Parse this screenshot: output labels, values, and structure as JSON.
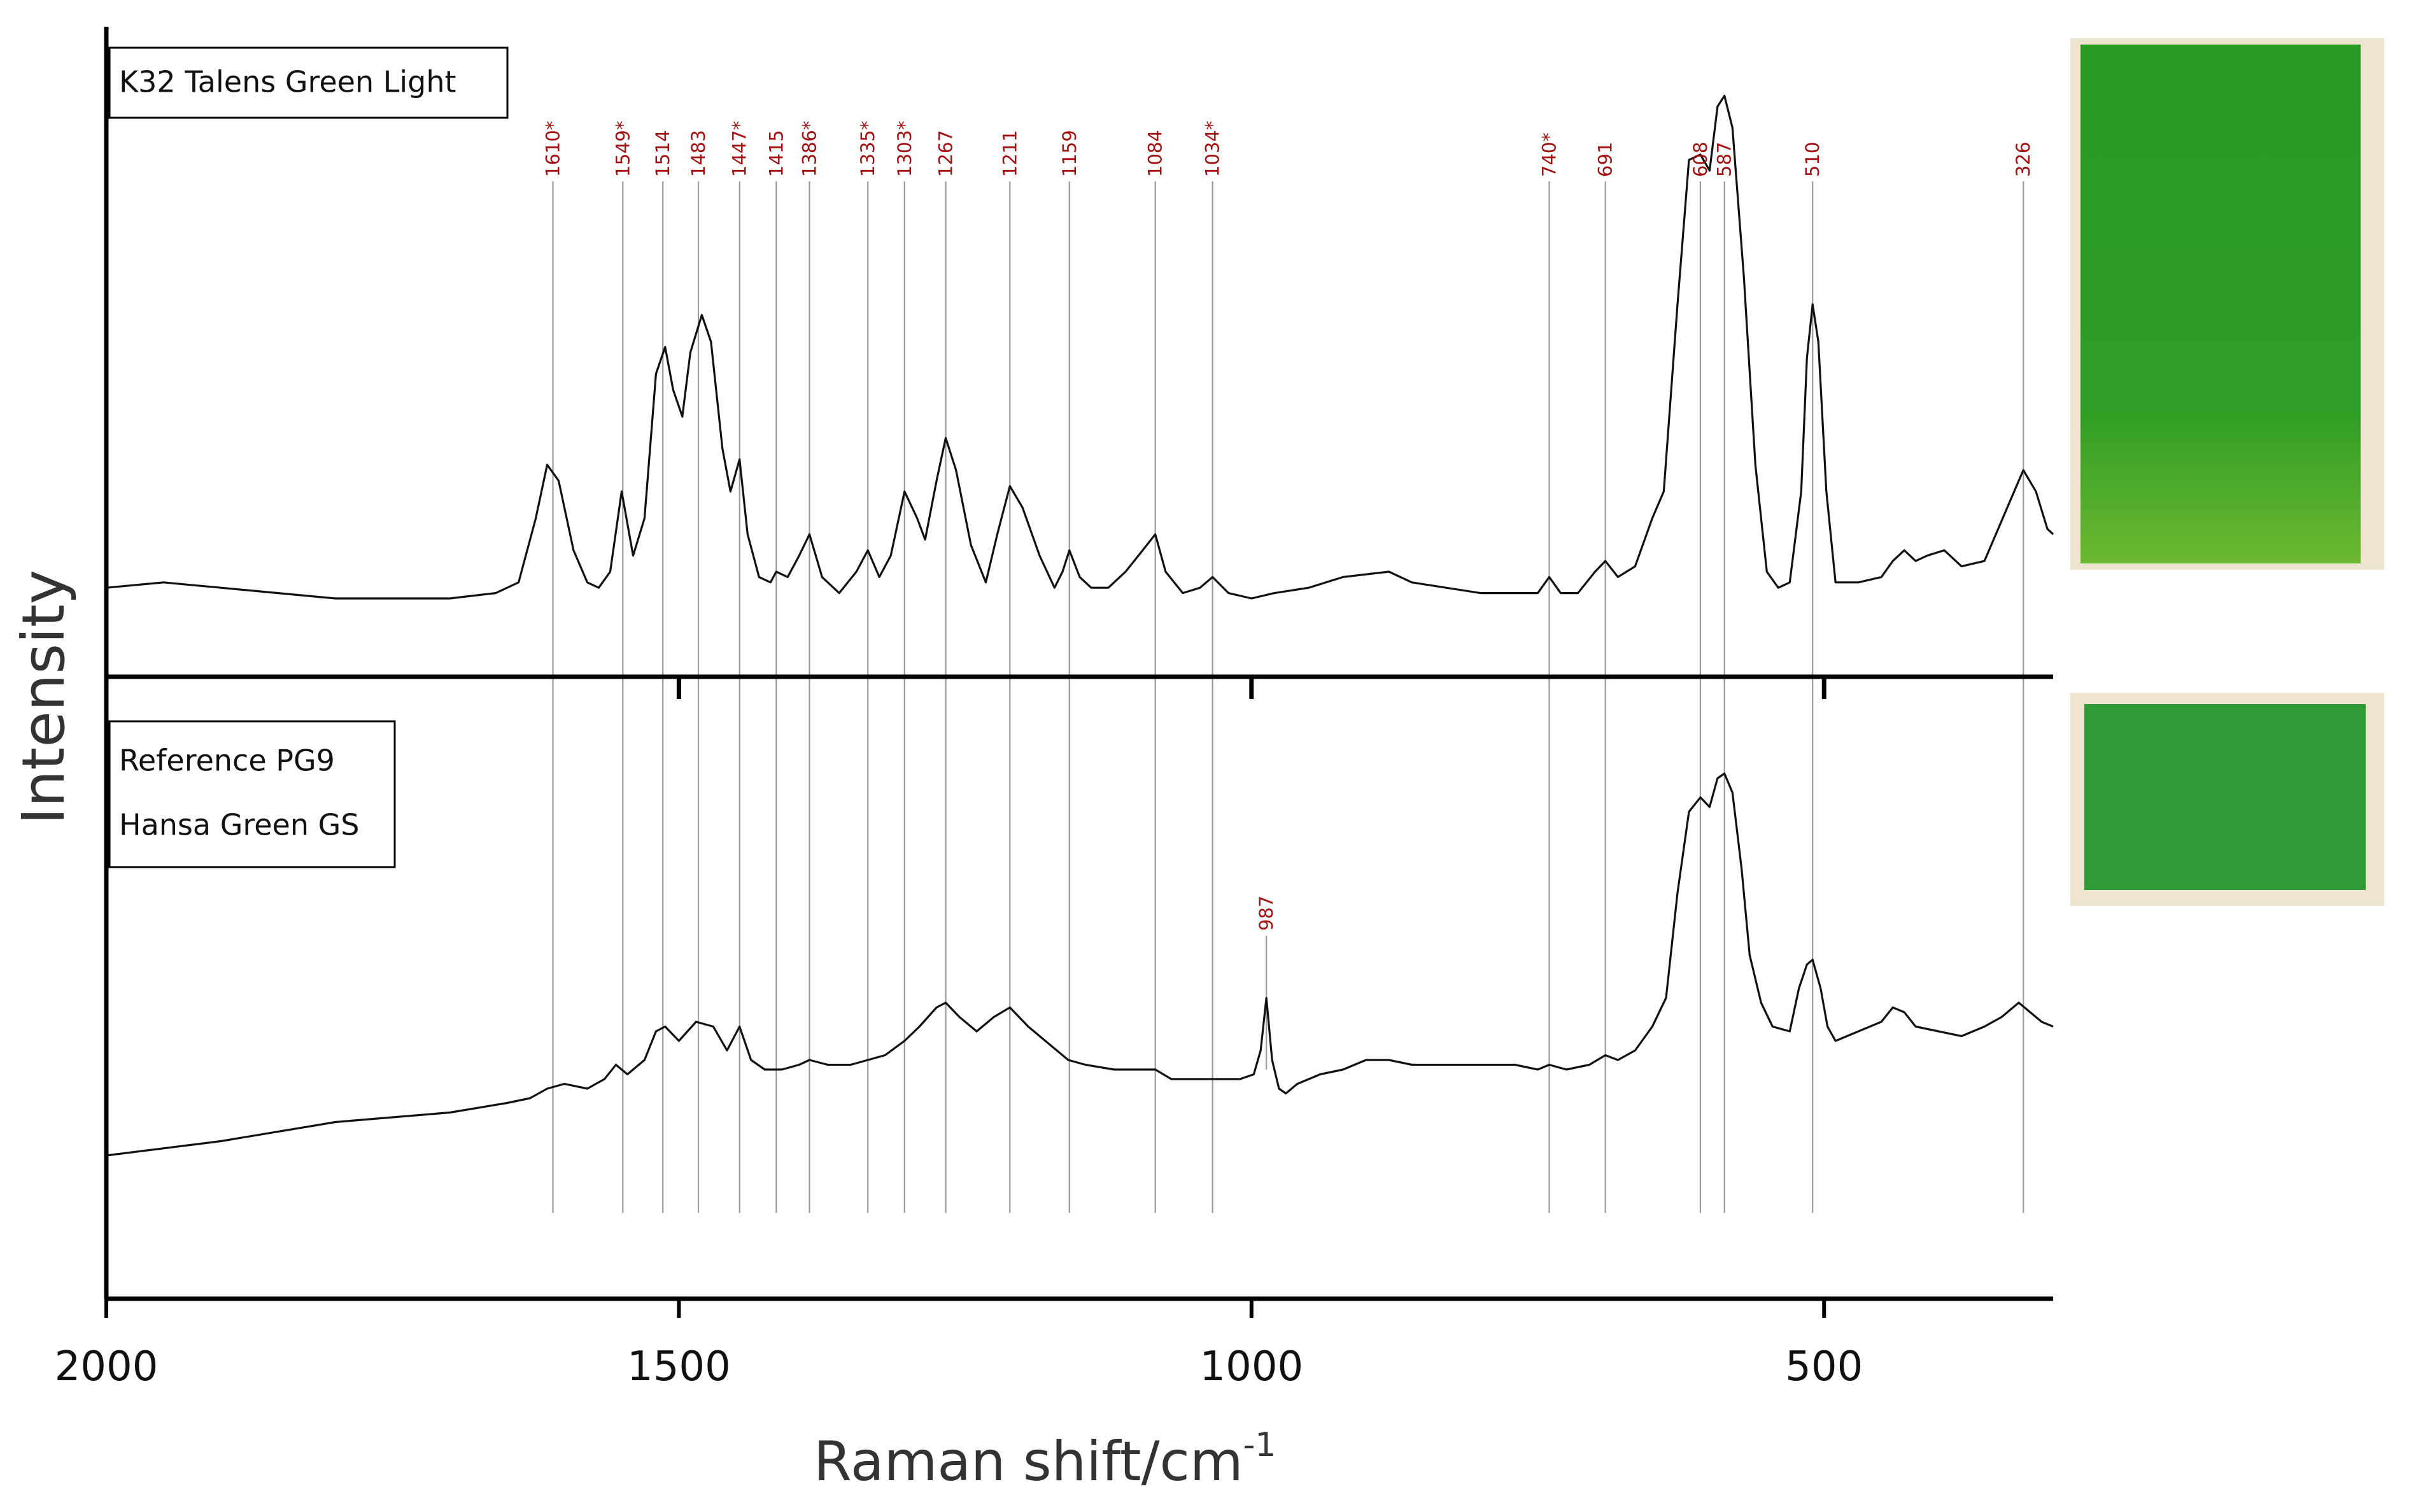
{
  "chart_data": {
    "type": "line",
    "xlabel": "Raman shift/cm",
    "xlabel_superscript": "-1",
    "ylabel": "Intensity",
    "x_reversed": true,
    "xlim": [
      2000,
      300
    ],
    "x_ticks": [
      2000,
      1500,
      1000,
      500
    ],
    "x_tick_labels": [
      "2000",
      "1500",
      "1000",
      "500"
    ],
    "panels": [
      {
        "legend": [
          "K32 Talens Green Light"
        ],
        "swatch_color": "#3a9a2a",
        "peak_labels": [
          {
            "x": 1610,
            "label": "1610*"
          },
          {
            "x": 1549,
            "label": "1549*"
          },
          {
            "x": 1514,
            "label": "1514"
          },
          {
            "x": 1483,
            "label": "1483"
          },
          {
            "x": 1447,
            "label": "1447*"
          },
          {
            "x": 1415,
            "label": "1415"
          },
          {
            "x": 1386,
            "label": "1386*"
          },
          {
            "x": 1335,
            "label": "1335*"
          },
          {
            "x": 1303,
            "label": "1303*"
          },
          {
            "x": 1267,
            "label": "1267"
          },
          {
            "x": 1211,
            "label": "1211"
          },
          {
            "x": 1159,
            "label": "1159"
          },
          {
            "x": 1084,
            "label": "1084"
          },
          {
            "x": 1034,
            "label": "1034*"
          },
          {
            "x": 740,
            "label": "740*"
          },
          {
            "x": 691,
            "label": "691"
          },
          {
            "x": 608,
            "label": "608"
          },
          {
            "x": 587,
            "label": "587"
          },
          {
            "x": 510,
            "label": "510"
          },
          {
            "x": 326,
            "label": "326"
          }
        ],
        "series": [
          {
            "values": [
              [
                2000,
                0.02
              ],
              [
                1950,
                0.03
              ],
              [
                1900,
                0.02
              ],
              [
                1850,
                0.01
              ],
              [
                1800,
                0.0
              ],
              [
                1750,
                0.0
              ],
              [
                1700,
                0.0
              ],
              [
                1660,
                0.01
              ],
              [
                1640,
                0.03
              ],
              [
                1625,
                0.15
              ],
              [
                1615,
                0.25
              ],
              [
                1605,
                0.22
              ],
              [
                1592,
                0.09
              ],
              [
                1580,
                0.03
              ],
              [
                1570,
                0.02
              ],
              [
                1560,
                0.05
              ],
              [
                1550,
                0.2
              ],
              [
                1540,
                0.08
              ],
              [
                1530,
                0.15
              ],
              [
                1520,
                0.42
              ],
              [
                1512,
                0.47
              ],
              [
                1505,
                0.39
              ],
              [
                1497,
                0.34
              ],
              [
                1490,
                0.46
              ],
              [
                1480,
                0.53
              ],
              [
                1472,
                0.48
              ],
              [
                1462,
                0.28
              ],
              [
                1455,
                0.2
              ],
              [
                1447,
                0.26
              ],
              [
                1440,
                0.12
              ],
              [
                1430,
                0.04
              ],
              [
                1420,
                0.03
              ],
              [
                1415,
                0.05
              ],
              [
                1405,
                0.04
              ],
              [
                1395,
                0.08
              ],
              [
                1386,
                0.12
              ],
              [
                1375,
                0.04
              ],
              [
                1360,
                0.01
              ],
              [
                1345,
                0.05
              ],
              [
                1335,
                0.09
              ],
              [
                1325,
                0.04
              ],
              [
                1315,
                0.08
              ],
              [
                1303,
                0.2
              ],
              [
                1292,
                0.15
              ],
              [
                1285,
                0.11
              ],
              [
                1275,
                0.22
              ],
              [
                1267,
                0.3
              ],
              [
                1258,
                0.24
              ],
              [
                1245,
                0.1
              ],
              [
                1232,
                0.03
              ],
              [
                1222,
                0.12
              ],
              [
                1211,
                0.21
              ],
              [
                1200,
                0.17
              ],
              [
                1185,
                0.08
              ],
              [
                1172,
                0.02
              ],
              [
                1165,
                0.05
              ],
              [
                1159,
                0.09
              ],
              [
                1150,
                0.04
              ],
              [
                1140,
                0.02
              ],
              [
                1125,
                0.02
              ],
              [
                1110,
                0.05
              ],
              [
                1095,
                0.09
              ],
              [
                1084,
                0.12
              ],
              [
                1075,
                0.05
              ],
              [
                1060,
                0.01
              ],
              [
                1045,
                0.02
              ],
              [
                1034,
                0.04
              ],
              [
                1020,
                0.01
              ],
              [
                1000,
                0.0
              ],
              [
                980,
                0.01
              ],
              [
                950,
                0.02
              ],
              [
                920,
                0.04
              ],
              [
                880,
                0.05
              ],
              [
                860,
                0.03
              ],
              [
                830,
                0.02
              ],
              [
                800,
                0.01
              ],
              [
                770,
                0.01
              ],
              [
                750,
                0.01
              ],
              [
                740,
                0.04
              ],
              [
                730,
                0.01
              ],
              [
                715,
                0.01
              ],
              [
                700,
                0.05
              ],
              [
                691,
                0.07
              ],
              [
                680,
                0.04
              ],
              [
                665,
                0.06
              ],
              [
                650,
                0.15
              ],
              [
                640,
                0.2
              ],
              [
                628,
                0.55
              ],
              [
                618,
                0.82
              ],
              [
                608,
                0.83
              ],
              [
                600,
                0.8
              ],
              [
                593,
                0.92
              ],
              [
                587,
                0.94
              ],
              [
                580,
                0.88
              ],
              [
                570,
                0.6
              ],
              [
                560,
                0.25
              ],
              [
                550,
                0.05
              ],
              [
                540,
                0.02
              ],
              [
                530,
                0.03
              ],
              [
                520,
                0.2
              ],
              [
                515,
                0.45
              ],
              [
                510,
                0.55
              ],
              [
                505,
                0.48
              ],
              [
                498,
                0.2
              ],
              [
                490,
                0.03
              ],
              [
                470,
                0.03
              ],
              [
                450,
                0.04
              ],
              [
                440,
                0.07
              ],
              [
                430,
                0.09
              ],
              [
                420,
                0.07
              ],
              [
                410,
                0.08
              ],
              [
                395,
                0.09
              ],
              [
                380,
                0.06
              ],
              [
                360,
                0.07
              ],
              [
                340,
                0.17
              ],
              [
                326,
                0.24
              ],
              [
                315,
                0.2
              ],
              [
                305,
                0.13
              ],
              [
                300,
                0.12
              ]
            ]
          }
        ]
      },
      {
        "legend": [
          "Reference PG9",
          "Hansa Green GS"
        ],
        "swatch_color": "#2e9a35",
        "peak_labels": [
          {
            "x": 987,
            "label": "987"
          }
        ],
        "series": [
          {
            "values": [
              [
                2000,
                0.0
              ],
              [
                1900,
                0.03
              ],
              [
                1800,
                0.07
              ],
              [
                1700,
                0.09
              ],
              [
                1650,
                0.11
              ],
              [
                1630,
                0.12
              ],
              [
                1615,
                0.14
              ],
              [
                1600,
                0.15
              ],
              [
                1580,
                0.14
              ],
              [
                1565,
                0.16
              ],
              [
                1555,
                0.19
              ],
              [
                1545,
                0.17
              ],
              [
                1530,
                0.2
              ],
              [
                1520,
                0.26
              ],
              [
                1512,
                0.27
              ],
              [
                1500,
                0.24
              ],
              [
                1485,
                0.28
              ],
              [
                1470,
                0.27
              ],
              [
                1458,
                0.22
              ],
              [
                1447,
                0.27
              ],
              [
                1437,
                0.2
              ],
              [
                1425,
                0.18
              ],
              [
                1410,
                0.18
              ],
              [
                1395,
                0.19
              ],
              [
                1386,
                0.2
              ],
              [
                1370,
                0.19
              ],
              [
                1350,
                0.19
              ],
              [
                1335,
                0.2
              ],
              [
                1320,
                0.21
              ],
              [
                1303,
                0.24
              ],
              [
                1290,
                0.27
              ],
              [
                1275,
                0.31
              ],
              [
                1267,
                0.32
              ],
              [
                1255,
                0.29
              ],
              [
                1240,
                0.26
              ],
              [
                1225,
                0.29
              ],
              [
                1211,
                0.31
              ],
              [
                1195,
                0.27
              ],
              [
                1175,
                0.23
              ],
              [
                1160,
                0.2
              ],
              [
                1145,
                0.19
              ],
              [
                1120,
                0.18
              ],
              [
                1100,
                0.18
              ],
              [
                1084,
                0.18
              ],
              [
                1070,
                0.16
              ],
              [
                1050,
                0.16
              ],
              [
                1030,
                0.16
              ],
              [
                1010,
                0.16
              ],
              [
                998,
                0.17
              ],
              [
                992,
                0.22
              ],
              [
                987,
                0.33
              ],
              [
                982,
                0.2
              ],
              [
                976,
                0.14
              ],
              [
                970,
                0.13
              ],
              [
                960,
                0.15
              ],
              [
                940,
                0.17
              ],
              [
                920,
                0.18
              ],
              [
                900,
                0.2
              ],
              [
                880,
                0.2
              ],
              [
                860,
                0.19
              ],
              [
                830,
                0.19
              ],
              [
                800,
                0.19
              ],
              [
                770,
                0.19
              ],
              [
                750,
                0.18
              ],
              [
                740,
                0.19
              ],
              [
                725,
                0.18
              ],
              [
                705,
                0.19
              ],
              [
                691,
                0.21
              ],
              [
                680,
                0.2
              ],
              [
                665,
                0.22
              ],
              [
                650,
                0.27
              ],
              [
                638,
                0.33
              ],
              [
                628,
                0.55
              ],
              [
                618,
                0.72
              ],
              [
                608,
                0.75
              ],
              [
                600,
                0.73
              ],
              [
                593,
                0.79
              ],
              [
                587,
                0.8
              ],
              [
                580,
                0.76
              ],
              [
                572,
                0.6
              ],
              [
                565,
                0.42
              ],
              [
                555,
                0.32
              ],
              [
                545,
                0.27
              ],
              [
                530,
                0.26
              ],
              [
                522,
                0.35
              ],
              [
                515,
                0.4
              ],
              [
                510,
                0.41
              ],
              [
                503,
                0.35
              ],
              [
                497,
                0.27
              ],
              [
                490,
                0.24
              ],
              [
                470,
                0.26
              ],
              [
                450,
                0.28
              ],
              [
                440,
                0.31
              ],
              [
                430,
                0.3
              ],
              [
                420,
                0.27
              ],
              [
                400,
                0.26
              ],
              [
                380,
                0.25
              ],
              [
                360,
                0.27
              ],
              [
                345,
                0.29
              ],
              [
                330,
                0.32
              ],
              [
                320,
                0.3
              ],
              [
                310,
                0.28
              ],
              [
                300,
                0.27
              ]
            ]
          }
        ]
      }
    ]
  }
}
